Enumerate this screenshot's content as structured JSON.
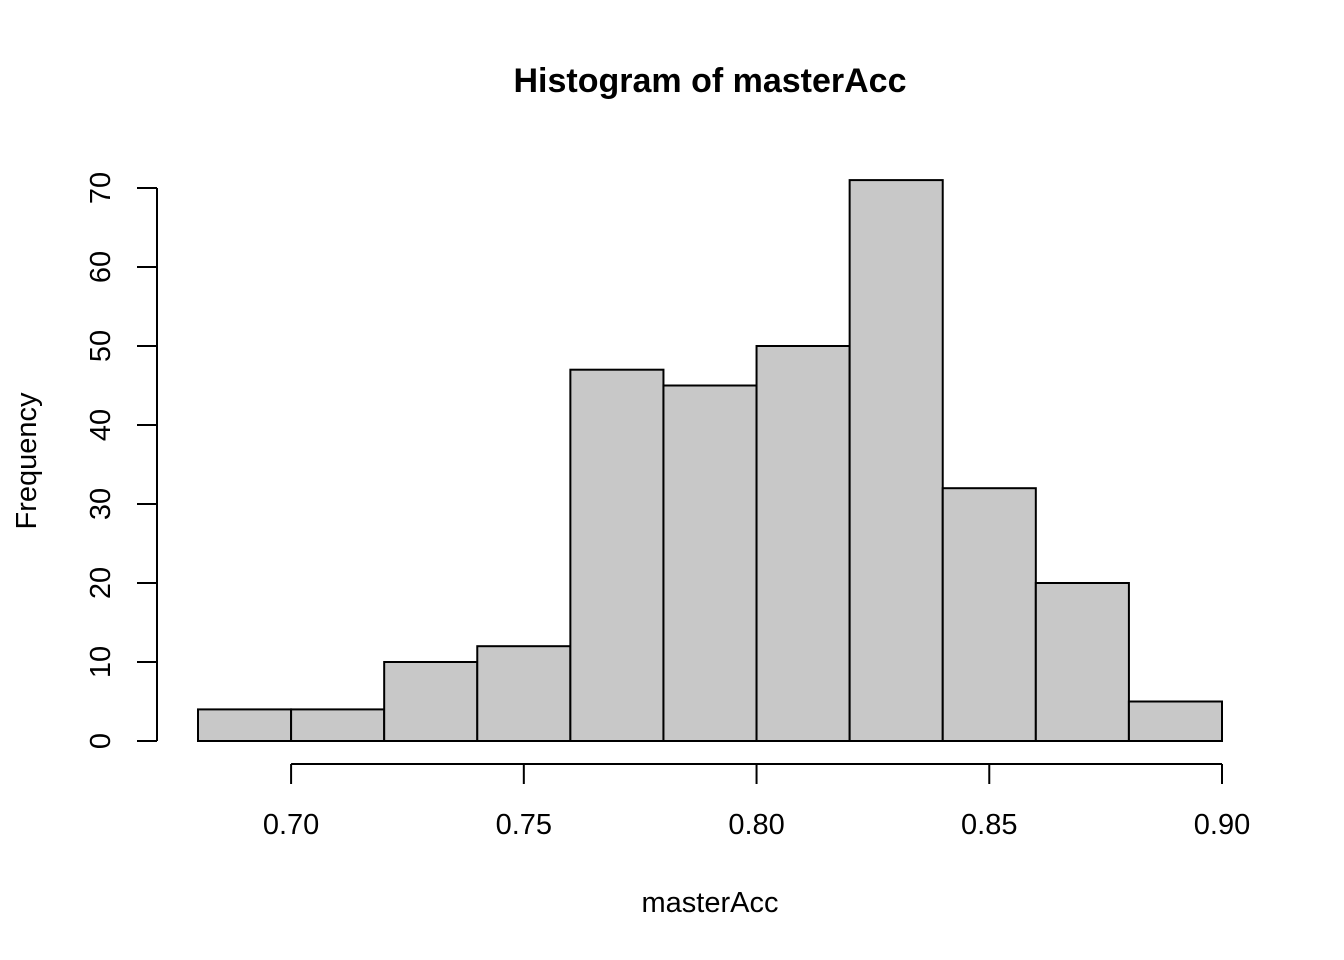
{
  "chart_data": {
    "type": "bar",
    "title": "Histogram of masterAcc",
    "xlabel": "masterAcc",
    "ylabel": "Frequency",
    "bin_edges": [
      0.68,
      0.7,
      0.72,
      0.74,
      0.76,
      0.78,
      0.8,
      0.82,
      0.84,
      0.86,
      0.88,
      0.9
    ],
    "values": [
      4,
      4,
      10,
      12,
      47,
      45,
      50,
      71,
      32,
      20,
      5
    ],
    "xlim": [
      0.68,
      0.9
    ],
    "ylim": [
      0,
      70
    ],
    "x_ticks": [
      0.7,
      0.75,
      0.8,
      0.85,
      0.9
    ],
    "x_tick_labels": [
      "0.70",
      "0.75",
      "0.80",
      "0.85",
      "0.90"
    ],
    "y_ticks": [
      0,
      10,
      20,
      30,
      40,
      50,
      60,
      70
    ],
    "y_tick_labels": [
      "0",
      "10",
      "20",
      "30",
      "40",
      "50",
      "60",
      "70"
    ],
    "bar_color": "#c8c8c8",
    "edge_color": "#000000",
    "grid": false,
    "legend": "none"
  }
}
